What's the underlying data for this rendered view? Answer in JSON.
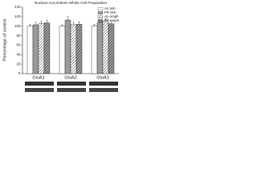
{
  "chart_data": {
    "type": "bar",
    "title": "Nucleus Accumbens Whole Cell Preparation",
    "ylabel": "Percentage of control",
    "categories": [
      "GluA1",
      "GluA2",
      "GluA3"
    ],
    "series": [
      {
        "name": "AL-Veh",
        "color": "#ffffff",
        "hatch": false,
        "values": [
          100,
          100,
          100
        ],
        "errors": [
          4,
          3,
          4
        ]
      },
      {
        "name": "FR-Veh",
        "color": "#9a9a9a",
        "hatch": false,
        "values": [
          103,
          113,
          108
        ],
        "errors": [
          5,
          7,
          6
        ]
      },
      {
        "name": "AL-Amph",
        "color": "#ffffff",
        "hatch": true,
        "values": [
          105,
          103,
          110
        ],
        "errors": [
          5,
          5,
          6
        ]
      },
      {
        "name": "FR-Amph",
        "color": "#9a9a9a",
        "hatch": true,
        "values": [
          107,
          104,
          105
        ],
        "errors": [
          5,
          5,
          5
        ]
      }
    ],
    "ylim": [
      0,
      140
    ],
    "yticks": [
      0,
      20,
      40,
      60,
      80,
      100,
      120,
      140
    ],
    "grid": false,
    "legend": "top-right"
  }
}
